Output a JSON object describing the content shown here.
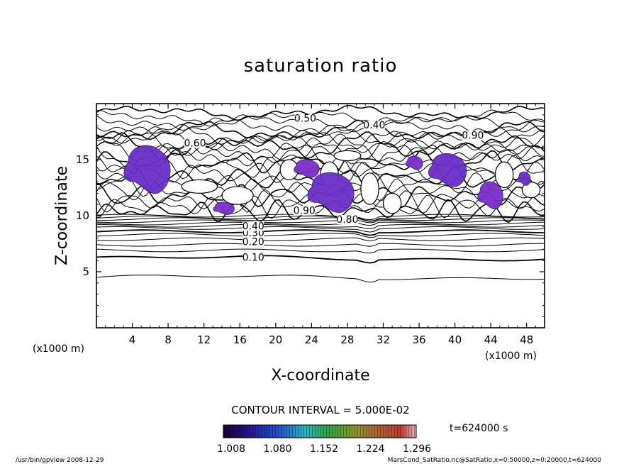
{
  "chart_data": {
    "type": "contour",
    "title": "saturation ratio",
    "xlabel": "X-coordinate",
    "ylabel": "Z-coordinate",
    "x_unit_label": "(x1000 m)",
    "z_unit_label": "(x1000 m)",
    "xlim": [
      0,
      50
    ],
    "ylim": [
      0,
      20
    ],
    "x_ticks": [
      4,
      8,
      12,
      16,
      20,
      24,
      28,
      32,
      36,
      40,
      44,
      48
    ],
    "y_ticks": [
      5,
      10,
      15
    ],
    "contour_interval_label": "CONTOUR INTERVAL = 5.000E-02",
    "contour_labels": [
      {
        "text": "0.50",
        "x": 23.3,
        "z": 18.5
      },
      {
        "text": "0.40",
        "x": 31.0,
        "z": 17.9
      },
      {
        "text": "0.60",
        "x": 11.0,
        "z": 16.3
      },
      {
        "text": "0.90",
        "x": 42.0,
        "z": 17.0
      },
      {
        "text": "0.10",
        "x": 17.5,
        "z": 6.1
      },
      {
        "text": "0.20",
        "x": 17.5,
        "z": 7.5
      },
      {
        "text": "0.30",
        "x": 17.5,
        "z": 8.3
      },
      {
        "text": "0.40",
        "x": 17.5,
        "z": 8.9
      },
      {
        "text": "0.90",
        "x": 23.2,
        "z": 10.3
      },
      {
        "text": "0.80",
        "x": 28.0,
        "z": 9.5
      }
    ],
    "shaded_regions": [
      {
        "x": [
          3.0,
          8.5
        ],
        "z": [
          12.0,
          16.2
        ]
      },
      {
        "x": [
          22.0,
          25.0
        ],
        "z": [
          13.4,
          15.0
        ]
      },
      {
        "x": [
          23.5,
          29.0
        ],
        "z": [
          10.3,
          13.8
        ]
      },
      {
        "x": [
          34.5,
          36.5
        ],
        "z": [
          14.1,
          15.3
        ]
      },
      {
        "x": [
          37.0,
          41.5
        ],
        "z": [
          12.6,
          15.5
        ]
      },
      {
        "x": [
          42.5,
          45.5
        ],
        "z": [
          10.6,
          13.0
        ]
      },
      {
        "x": [
          47.0,
          48.5
        ],
        "z": [
          12.7,
          13.9
        ]
      },
      {
        "x": [
          13.0,
          15.5
        ],
        "z": [
          10.1,
          11.2
        ]
      }
    ],
    "colorbar": {
      "ticks": [
        "1.008",
        "1.080",
        "1.152",
        "1.224",
        "1.296"
      ],
      "min": 1.008,
      "max": 1.3
    },
    "time_label": "t=624000 s"
  },
  "footer": {
    "left": "/usr/bin/gpview   2008-12-29",
    "right": "MarsCond_SatRatio.nc@SatRatio,x=0:50000,z=0:20000,t=624000"
  }
}
